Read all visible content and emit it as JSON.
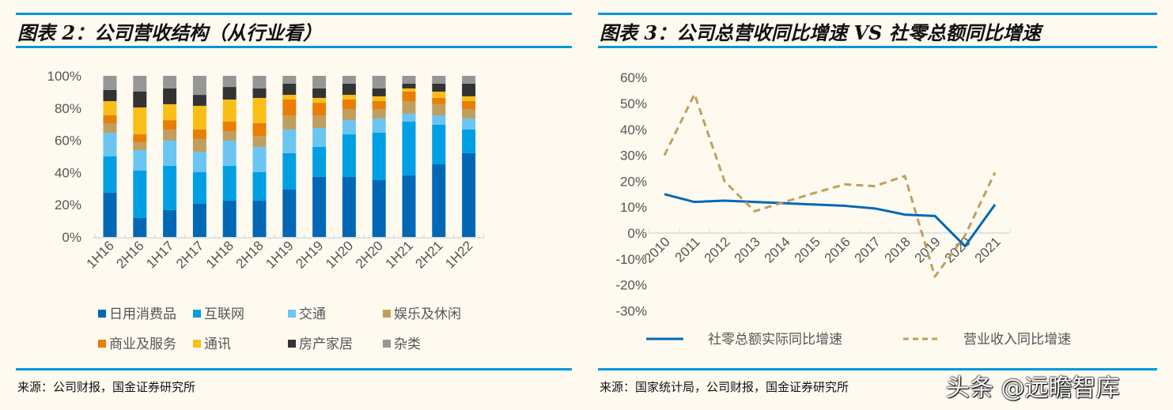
{
  "left": {
    "title": "图表 2：公司营收结构（从行业看）",
    "source": "来源：公司财报，国金证券研究所"
  },
  "right": {
    "title": "图表 3：公司总营收同比增速 VS 社零总额同比增速",
    "source": "来源：国家统计局，公司财报，国金证券研究所"
  },
  "watermark": "头条 @远瞻智库",
  "chart_data": [
    {
      "type": "bar",
      "stacked": true,
      "title": "公司营收结构（从行业看）",
      "categories": [
        "1H16",
        "2H16",
        "1H17",
        "2H17",
        "1H18",
        "2H18",
        "1H19",
        "2H19",
        "1H20",
        "2H20",
        "1H21",
        "2H21",
        "1H22"
      ],
      "ylim": [
        0,
        100
      ],
      "yticks": [
        "0%",
        "20%",
        "40%",
        "60%",
        "80%",
        "100%"
      ],
      "legend": "bottom",
      "series": [
        {
          "name": "日用消费品",
          "color": "#0068b5",
          "values": [
            27.5,
            11.8,
            16.7,
            20.6,
            22.5,
            22.5,
            29.4,
            37.3,
            37.3,
            35.3,
            38.2,
            45.1,
            52.0
          ]
        },
        {
          "name": "互联网",
          "color": "#009fe3",
          "values": [
            22.5,
            29.4,
            27.4,
            19.6,
            21.6,
            17.7,
            22.6,
            18.6,
            26.4,
            29.4,
            33.4,
            24.5,
            14.7
          ]
        },
        {
          "name": "交通",
          "color": "#6bc5f2",
          "values": [
            14.7,
            12.7,
            15.7,
            12.7,
            15.7,
            15.7,
            14.7,
            11.7,
            8.8,
            8.8,
            4.9,
            5.9,
            6.8
          ]
        },
        {
          "name": "娱乐及休闲",
          "color": "#c09f5e",
          "values": [
            5.9,
            4.9,
            6.9,
            7.9,
            5.9,
            6.8,
            8.8,
            7.9,
            6.9,
            5.9,
            7.8,
            6.9,
            5.9
          ]
        },
        {
          "name": "商业及服务",
          "color": "#e87e04",
          "values": [
            4.9,
            4.9,
            5.8,
            5.9,
            5.9,
            7.9,
            9.8,
            7.8,
            5.9,
            4.9,
            5.9,
            3.9,
            4.9
          ]
        },
        {
          "name": "通讯",
          "color": "#f9be17",
          "values": [
            8.8,
            16.7,
            9.9,
            14.7,
            13.7,
            15.7,
            2.9,
            3.0,
            2.9,
            3.0,
            2.0,
            3.9,
            3.0
          ]
        },
        {
          "name": "房产家居",
          "color": "#333333",
          "values": [
            6.9,
            9.8,
            9.8,
            6.8,
            7.8,
            5.9,
            6.9,
            5.9,
            6.9,
            4.9,
            2.9,
            4.9,
            7.8
          ]
        },
        {
          "name": "杂类",
          "color": "#969696",
          "values": [
            8.8,
            9.8,
            7.8,
            11.8,
            6.9,
            7.8,
            4.9,
            7.8,
            4.9,
            7.8,
            4.9,
            4.9,
            4.9
          ]
        }
      ]
    },
    {
      "type": "line",
      "title": "公司总营收同比增速 VS 社零总额同比增速",
      "x": [
        "2010",
        "2011",
        "2012",
        "2013",
        "2014",
        "2015",
        "2016",
        "2017",
        "2018",
        "2019",
        "2020",
        "2021"
      ],
      "ylim": [
        -30,
        60
      ],
      "yticks": [
        "-30%",
        "-20%",
        "-10%",
        "0%",
        "10%",
        "20%",
        "30%",
        "40%",
        "50%",
        "60%"
      ],
      "legend": "bottom",
      "series": [
        {
          "name": "社零总额实际同比增速",
          "color": "#0068b5",
          "dash": false,
          "values": [
            15.0,
            12.0,
            12.5,
            12.0,
            11.5,
            11.0,
            10.5,
            9.5,
            7.1,
            6.6,
            -5.1,
            11.0
          ]
        },
        {
          "name": "营业收入同比增速",
          "color": "#c09f5e",
          "dash": true,
          "values": [
            30.0,
            53.6,
            20.0,
            8.4,
            12.0,
            15.5,
            18.8,
            18.1,
            22.0,
            -16.8,
            -1.0,
            23.4
          ]
        }
      ]
    }
  ]
}
